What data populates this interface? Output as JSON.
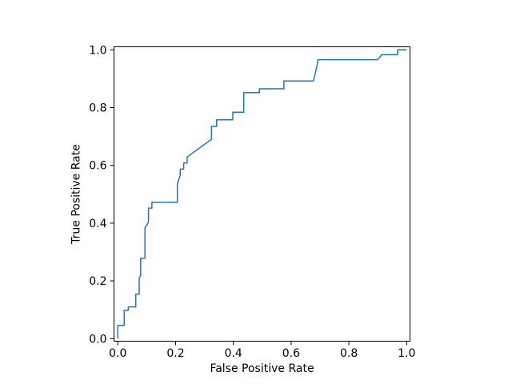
{
  "figure": {
    "background": "#ffffff",
    "text_color": "#000000"
  },
  "chart_data": {
    "type": "line",
    "title": "",
    "xlabel": "False Positive Rate",
    "ylabel": "True Positive Rate",
    "x_ticks": [
      0.0,
      0.2,
      0.4,
      0.6,
      0.8,
      1.0
    ],
    "y_ticks": [
      0.0,
      0.2,
      0.4,
      0.6,
      0.8,
      1.0
    ],
    "x_tick_labels": [
      "0.0",
      "0.2",
      "0.4",
      "0.6",
      "0.8",
      "1.0"
    ],
    "y_tick_labels": [
      "0.0",
      "0.2",
      "0.4",
      "0.6",
      "0.8",
      "1.0"
    ],
    "xlim": [
      -0.0133,
      1.0116
    ],
    "ylim": [
      -0.0089,
      1.0105
    ],
    "grid": false,
    "legend": false,
    "series": [
      {
        "name": "ROC curve",
        "color": "#1f77b4",
        "linewidth": 1.5,
        "points": [
          [
            0.0,
            0.0
          ],
          [
            0.0,
            0.046
          ],
          [
            0.022,
            0.046
          ],
          [
            0.022,
            0.098
          ],
          [
            0.036,
            0.098
          ],
          [
            0.036,
            0.11
          ],
          [
            0.062,
            0.11
          ],
          [
            0.062,
            0.154
          ],
          [
            0.074,
            0.154
          ],
          [
            0.074,
            0.209
          ],
          [
            0.079,
            0.219
          ],
          [
            0.079,
            0.278
          ],
          [
            0.094,
            0.278
          ],
          [
            0.094,
            0.383
          ],
          [
            0.106,
            0.403
          ],
          [
            0.106,
            0.452
          ],
          [
            0.118,
            0.452
          ],
          [
            0.118,
            0.472
          ],
          [
            0.206,
            0.472
          ],
          [
            0.206,
            0.536
          ],
          [
            0.216,
            0.565
          ],
          [
            0.216,
            0.587
          ],
          [
            0.228,
            0.587
          ],
          [
            0.228,
            0.608
          ],
          [
            0.24,
            0.608
          ],
          [
            0.24,
            0.628
          ],
          [
            0.251,
            0.637
          ],
          [
            0.324,
            0.69
          ],
          [
            0.324,
            0.735
          ],
          [
            0.342,
            0.735
          ],
          [
            0.342,
            0.758
          ],
          [
            0.398,
            0.758
          ],
          [
            0.398,
            0.784
          ],
          [
            0.436,
            0.784
          ],
          [
            0.436,
            0.852
          ],
          [
            0.49,
            0.852
          ],
          [
            0.49,
            0.865
          ],
          [
            0.575,
            0.865
          ],
          [
            0.575,
            0.892
          ],
          [
            0.677,
            0.892
          ],
          [
            0.683,
            0.917
          ],
          [
            0.688,
            0.938
          ],
          [
            0.693,
            0.966
          ],
          [
            0.899,
            0.966
          ],
          [
            0.914,
            0.983
          ],
          [
            0.969,
            0.983
          ],
          [
            0.969,
            1.0
          ],
          [
            1.0,
            1.0
          ]
        ]
      }
    ]
  }
}
